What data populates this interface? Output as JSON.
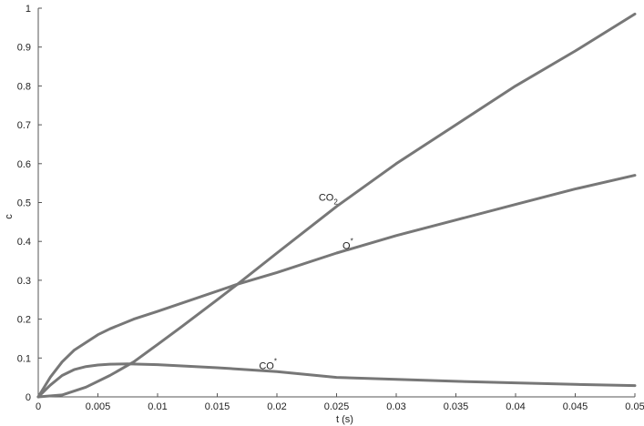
{
  "chart_data": {
    "type": "line",
    "title": "",
    "xlabel": "t (s)",
    "ylabel": "c",
    "xlim": [
      0,
      0.05
    ],
    "ylim": [
      0,
      1
    ],
    "grid": false,
    "legend": "none",
    "line_color": "#777777",
    "x_ticks": [
      "0",
      "0.005",
      "0.01",
      "0.015",
      "0.02",
      "0.025",
      "0.03",
      "0.035",
      "0.04",
      "0.045",
      "0.05"
    ],
    "y_ticks": [
      "0",
      "0.1",
      "0.2",
      "0.3",
      "0.4",
      "0.5",
      "0.6",
      "0.7",
      "0.8",
      "0.9",
      "1"
    ],
    "series": [
      {
        "name": "CO2",
        "label_main": "CO",
        "label_sub": "2",
        "x": [
          0,
          0.002,
          0.004,
          0.006,
          0.008,
          0.01,
          0.012,
          0.015,
          0.0167,
          0.02,
          0.025,
          0.03,
          0.035,
          0.04,
          0.045,
          0.05
        ],
        "y": [
          0,
          0.005,
          0.025,
          0.055,
          0.09,
          0.135,
          0.18,
          0.25,
          0.29,
          0.37,
          0.49,
          0.6,
          0.7,
          0.8,
          0.89,
          0.985
        ]
      },
      {
        "name": "O*",
        "label_main": "O",
        "label_sup": "*",
        "x": [
          0,
          0.001,
          0.002,
          0.003,
          0.004,
          0.005,
          0.006,
          0.008,
          0.01,
          0.0167,
          0.02,
          0.025,
          0.03,
          0.035,
          0.04,
          0.045,
          0.05
        ],
        "y": [
          0,
          0.05,
          0.09,
          0.12,
          0.14,
          0.16,
          0.175,
          0.2,
          0.22,
          0.29,
          0.32,
          0.37,
          0.415,
          0.455,
          0.495,
          0.535,
          0.57
        ]
      },
      {
        "name": "CO*",
        "label_main": "CO",
        "label_sup": "*",
        "x": [
          0,
          0.001,
          0.002,
          0.003,
          0.004,
          0.005,
          0.006,
          0.0075,
          0.01,
          0.015,
          0.02,
          0.025,
          0.03,
          0.035,
          0.04,
          0.045,
          0.05
        ],
        "y": [
          0,
          0.03,
          0.055,
          0.07,
          0.078,
          0.082,
          0.084,
          0.085,
          0.083,
          0.075,
          0.065,
          0.05,
          0.045,
          0.04,
          0.036,
          0.032,
          0.029
        ]
      }
    ]
  }
}
